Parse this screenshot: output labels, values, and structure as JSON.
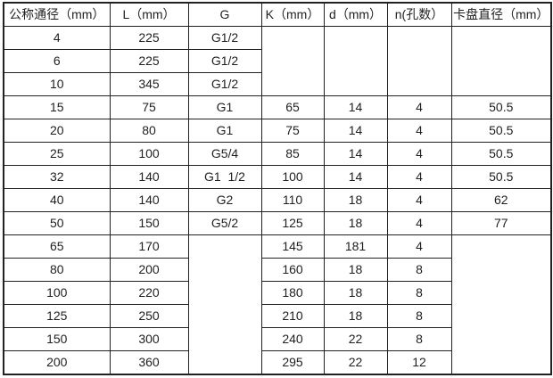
{
  "colors": {
    "border": "#212121",
    "text": "#1f1f1f",
    "background": "#ffffff"
  },
  "table": {
    "headers": [
      "公称通径（mm）",
      "L（mm）",
      "G",
      "K（mm）",
      "d（mm）",
      "n(孔数）",
      "卡盘直径（mm）"
    ],
    "rows": [
      [
        {
          "v": "4"
        },
        {
          "v": "225"
        },
        {
          "v": "G1/2"
        },
        {
          "v": "",
          "rowspan": 3
        },
        {
          "v": "",
          "rowspan": 3
        },
        {
          "v": "",
          "rowspan": 3
        },
        {
          "v": "",
          "rowspan": 3
        }
      ],
      [
        {
          "v": "6"
        },
        {
          "v": "225"
        },
        {
          "v": "G1/2"
        }
      ],
      [
        {
          "v": "10"
        },
        {
          "v": "345"
        },
        {
          "v": "G1/2"
        }
      ],
      [
        {
          "v": "15"
        },
        {
          "v": "75"
        },
        {
          "v": "G1"
        },
        {
          "v": "65"
        },
        {
          "v": "14"
        },
        {
          "v": "4"
        },
        {
          "v": "50.5"
        }
      ],
      [
        {
          "v": "20"
        },
        {
          "v": "80"
        },
        {
          "v": "G1"
        },
        {
          "v": "75"
        },
        {
          "v": "14"
        },
        {
          "v": "4"
        },
        {
          "v": "50.5"
        }
      ],
      [
        {
          "v": "25"
        },
        {
          "v": "100"
        },
        {
          "v": "G5/4"
        },
        {
          "v": "85"
        },
        {
          "v": "14"
        },
        {
          "v": "4"
        },
        {
          "v": "50.5"
        }
      ],
      [
        {
          "v": "32"
        },
        {
          "v": "140"
        },
        {
          "v": "G1  1/2"
        },
        {
          "v": "100"
        },
        {
          "v": "14"
        },
        {
          "v": "4"
        },
        {
          "v": "50.5"
        }
      ],
      [
        {
          "v": "40"
        },
        {
          "v": "140"
        },
        {
          "v": "G2"
        },
        {
          "v": "110"
        },
        {
          "v": "18"
        },
        {
          "v": "4"
        },
        {
          "v": "62"
        }
      ],
      [
        {
          "v": "50"
        },
        {
          "v": "150"
        },
        {
          "v": "G5/2"
        },
        {
          "v": "125"
        },
        {
          "v": "18"
        },
        {
          "v": "4"
        },
        {
          "v": "77"
        }
      ],
      [
        {
          "v": "65"
        },
        {
          "v": "170"
        },
        {
          "v": "",
          "rowspan": 6
        },
        {
          "v": "145"
        },
        {
          "v": "181"
        },
        {
          "v": "4"
        },
        {
          "v": "",
          "rowspan": 6
        }
      ],
      [
        {
          "v": "80"
        },
        {
          "v": "200"
        },
        {
          "v": "160"
        },
        {
          "v": "18"
        },
        {
          "v": "8"
        }
      ],
      [
        {
          "v": "100"
        },
        {
          "v": "220"
        },
        {
          "v": "180"
        },
        {
          "v": "18"
        },
        {
          "v": "8"
        }
      ],
      [
        {
          "v": "125"
        },
        {
          "v": "250"
        },
        {
          "v": "210"
        },
        {
          "v": "18"
        },
        {
          "v": "8"
        }
      ],
      [
        {
          "v": "150"
        },
        {
          "v": "300"
        },
        {
          "v": "240"
        },
        {
          "v": "22"
        },
        {
          "v": "8"
        }
      ],
      [
        {
          "v": "200"
        },
        {
          "v": "360"
        },
        {
          "v": "295"
        },
        {
          "v": "22"
        },
        {
          "v": "12"
        }
      ]
    ]
  }
}
